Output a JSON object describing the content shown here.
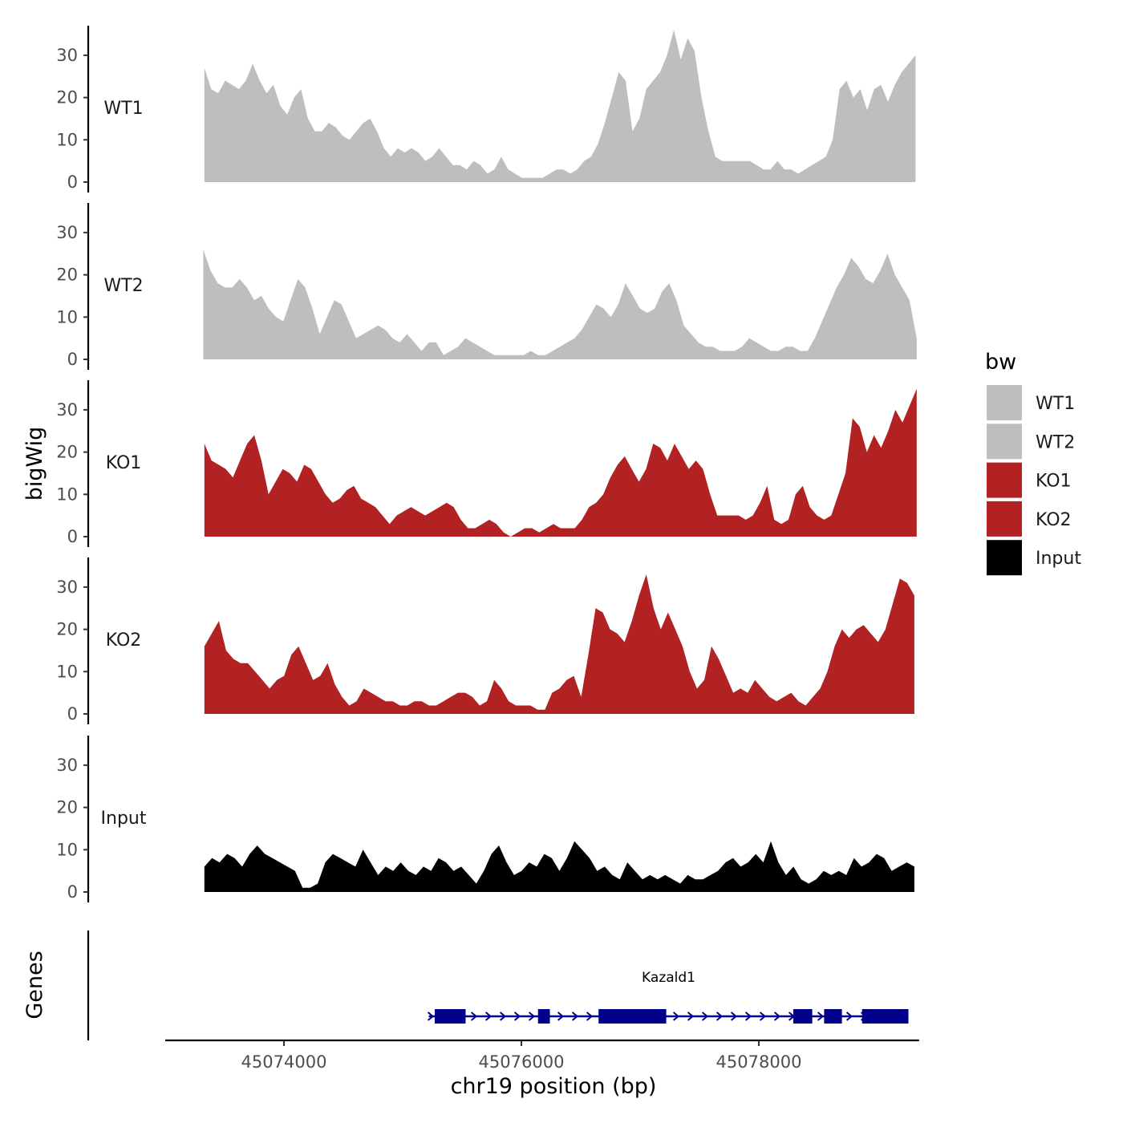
{
  "chart_data": {
    "type": "area",
    "title": "",
    "ylabel": "bigWig",
    "xlabel": "chr19 position (bp)",
    "gene_track_label": "Genes",
    "xlim": [
      45073000,
      45079350
    ],
    "x_ticks": [
      45074000,
      45076000,
      45078000
    ],
    "x_tick_labels": [
      "45074000",
      "45076000",
      "45078000"
    ],
    "ylim": [
      0,
      37
    ],
    "y_ticks": [
      0,
      10,
      20,
      30
    ],
    "y_tick_labels": [
      "0",
      "10",
      "20",
      "30"
    ],
    "legend": {
      "title": "bw",
      "position": "right",
      "entries": [
        {
          "label": "WT1",
          "color": "#BEBEBE"
        },
        {
          "label": "WT2",
          "color": "#BEBEBE"
        },
        {
          "label": "KO1",
          "color": "#B22222"
        },
        {
          "label": "KO2",
          "color": "#B22222"
        },
        {
          "label": "Input",
          "color": "#000000"
        }
      ]
    },
    "series": [
      {
        "name": "WT1",
        "color": "#BEBEBE",
        "x_start": 45073330,
        "x_end": 45079320,
        "values": [
          27,
          22,
          21,
          24,
          23,
          22,
          24,
          28,
          24,
          21,
          23,
          18,
          16,
          20,
          22,
          15,
          12,
          12,
          14,
          13,
          11,
          10,
          12,
          14,
          15,
          12,
          8,
          6,
          8,
          7,
          8,
          7,
          5,
          6,
          8,
          6,
          4,
          4,
          3,
          5,
          4,
          2,
          3,
          6,
          3,
          2,
          1,
          1,
          1,
          1,
          2,
          3,
          3,
          2,
          3,
          5,
          6,
          9,
          14,
          20,
          26,
          24,
          12,
          15,
          22,
          24,
          26,
          30,
          36,
          29,
          34,
          31,
          20,
          12,
          6,
          5,
          5,
          5,
          5,
          5,
          4,
          3,
          3,
          5,
          3,
          3,
          2,
          3,
          4,
          5,
          6,
          10,
          22,
          24,
          20,
          22,
          17,
          22,
          23,
          19,
          23,
          26,
          28,
          30
        ]
      },
      {
        "name": "WT2",
        "color": "#BEBEBE",
        "x_start": 45073320,
        "x_end": 45079330,
        "values": [
          26,
          21,
          18,
          17,
          17,
          19,
          17,
          14,
          15,
          12,
          10,
          9,
          14,
          19,
          17,
          12,
          6,
          10,
          14,
          13,
          9,
          5,
          6,
          7,
          8,
          7,
          5,
          4,
          6,
          4,
          2,
          4,
          4,
          1,
          2,
          3,
          5,
          4,
          3,
          2,
          1,
          1,
          1,
          1,
          1,
          2,
          1,
          1,
          2,
          3,
          4,
          5,
          7,
          10,
          13,
          12,
          10,
          13,
          18,
          15,
          12,
          11,
          12,
          16,
          18,
          14,
          8,
          6,
          4,
          3,
          3,
          2,
          2,
          2,
          3,
          5,
          4,
          3,
          2,
          2,
          3,
          3,
          2,
          2,
          5,
          9,
          13,
          17,
          20,
          24,
          22,
          19,
          18,
          21,
          25,
          20,
          17,
          14,
          5
        ]
      },
      {
        "name": "KO1",
        "color": "#B22222",
        "x_start": 45073330,
        "x_end": 45079330,
        "values": [
          22,
          18,
          17,
          16,
          14,
          18,
          22,
          24,
          18,
          10,
          13,
          16,
          15,
          13,
          17,
          16,
          13,
          10,
          8,
          9,
          11,
          12,
          9,
          8,
          7,
          5,
          3,
          5,
          6,
          7,
          6,
          5,
          6,
          7,
          8,
          7,
          4,
          2,
          2,
          3,
          4,
          3,
          1,
          0,
          1,
          2,
          2,
          1,
          2,
          3,
          2,
          2,
          2,
          4,
          7,
          8,
          10,
          14,
          17,
          19,
          16,
          13,
          16,
          22,
          21,
          18,
          22,
          19,
          16,
          18,
          16,
          10,
          5,
          5,
          5,
          5,
          4,
          5,
          8,
          12,
          4,
          3,
          4,
          10,
          12,
          7,
          5,
          4,
          5,
          10,
          15,
          28,
          26,
          20,
          24,
          21,
          25,
          30,
          27,
          31,
          35
        ]
      },
      {
        "name": "KO2",
        "color": "#B22222",
        "x_start": 45073330,
        "x_end": 45079310,
        "values": [
          16,
          19,
          22,
          15,
          13,
          12,
          12,
          10,
          8,
          6,
          8,
          9,
          14,
          16,
          12,
          8,
          9,
          12,
          7,
          4,
          2,
          3,
          6,
          5,
          4,
          3,
          3,
          2,
          2,
          3,
          3,
          2,
          2,
          3,
          4,
          5,
          5,
          4,
          2,
          3,
          8,
          6,
          3,
          2,
          2,
          2,
          1,
          1,
          5,
          6,
          8,
          9,
          4,
          14,
          25,
          24,
          20,
          19,
          17,
          22,
          28,
          33,
          25,
          20,
          24,
          20,
          16,
          10,
          6,
          8,
          16,
          13,
          9,
          5,
          6,
          5,
          8,
          6,
          4,
          3,
          4,
          5,
          3,
          2,
          4,
          6,
          10,
          16,
          20,
          18,
          20,
          21,
          19,
          17,
          20,
          26,
          32,
          31,
          28
        ]
      },
      {
        "name": "Input",
        "color": "#000000",
        "x_start": 45073330,
        "x_end": 45079310,
        "values": [
          6,
          8,
          7,
          9,
          8,
          6,
          9,
          11,
          9,
          8,
          7,
          6,
          5,
          1,
          1,
          2,
          7,
          9,
          8,
          7,
          6,
          10,
          7,
          4,
          6,
          5,
          7,
          5,
          4,
          6,
          5,
          8,
          7,
          5,
          6,
          4,
          2,
          5,
          9,
          11,
          7,
          4,
          5,
          7,
          6,
          9,
          8,
          5,
          8,
          12,
          10,
          8,
          5,
          6,
          4,
          3,
          7,
          5,
          3,
          4,
          3,
          4,
          3,
          2,
          4,
          3,
          3,
          4,
          5,
          7,
          8,
          6,
          7,
          9,
          7,
          12,
          7,
          4,
          6,
          3,
          2,
          3,
          5,
          4,
          5,
          4,
          8,
          6,
          7,
          9,
          8,
          5,
          6,
          7,
          6
        ]
      }
    ],
    "gene_annotation": {
      "name": "Kazald1",
      "color": "#00008B",
      "strand": "+",
      "start": 45075220,
      "end": 45079260,
      "exons": [
        [
          45075270,
          45075530
        ],
        [
          45076140,
          45076240
        ],
        [
          45076650,
          45077220
        ],
        [
          45078290,
          45078450
        ],
        [
          45078550,
          45078700
        ],
        [
          45078870,
          45079260
        ]
      ]
    }
  }
}
